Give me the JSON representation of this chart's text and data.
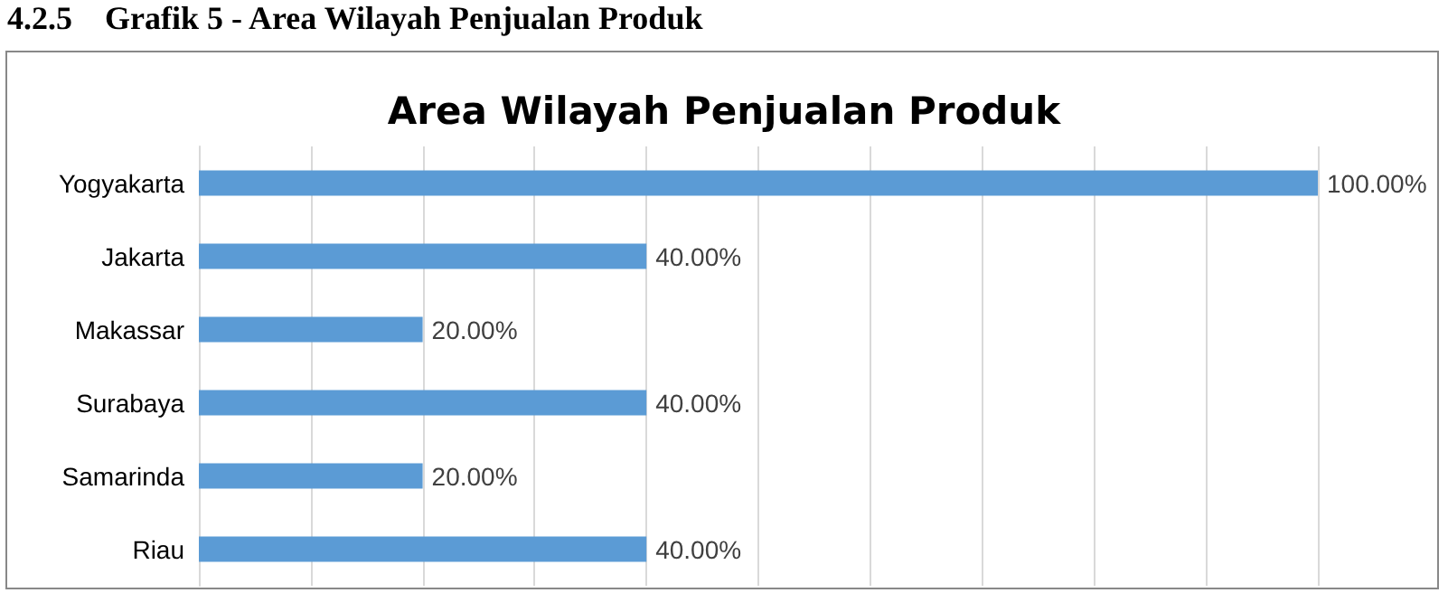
{
  "chart_data": {
    "type": "bar",
    "orientation": "horizontal",
    "title": "Area Wilayah Penjualan Produk",
    "annotations": [
      "4.2.5    Grafik 5 - Area Wilayah Penjualan Produk"
    ],
    "categories": [
      "Yogyakarta",
      "Jakarta",
      "Makassar",
      "Surabaya",
      "Samarinda",
      "Riau"
    ],
    "values": [
      100,
      40,
      20,
      40,
      20,
      40
    ],
    "value_labels": [
      "100.00%",
      "40.00%",
      "20.00%",
      "40.00%",
      "20.00%",
      "40.00%"
    ],
    "color": "#5b9bd5",
    "xlim": [
      0,
      100
    ],
    "xticks": [
      {
        "value": 0,
        "label": null
      },
      {
        "value": 10,
        "label": null
      },
      {
        "value": 20,
        "label": null
      },
      {
        "value": 30,
        "label": null
      },
      {
        "value": 40,
        "label": null
      },
      {
        "value": 50,
        "label": null
      },
      {
        "value": 60,
        "label": null
      },
      {
        "value": 70,
        "label": null
      },
      {
        "value": 80,
        "label": null
      },
      {
        "value": 90,
        "label": null
      },
      {
        "value": 100,
        "label": null
      }
    ],
    "grid": "x",
    "tick_labels": "y"
  }
}
